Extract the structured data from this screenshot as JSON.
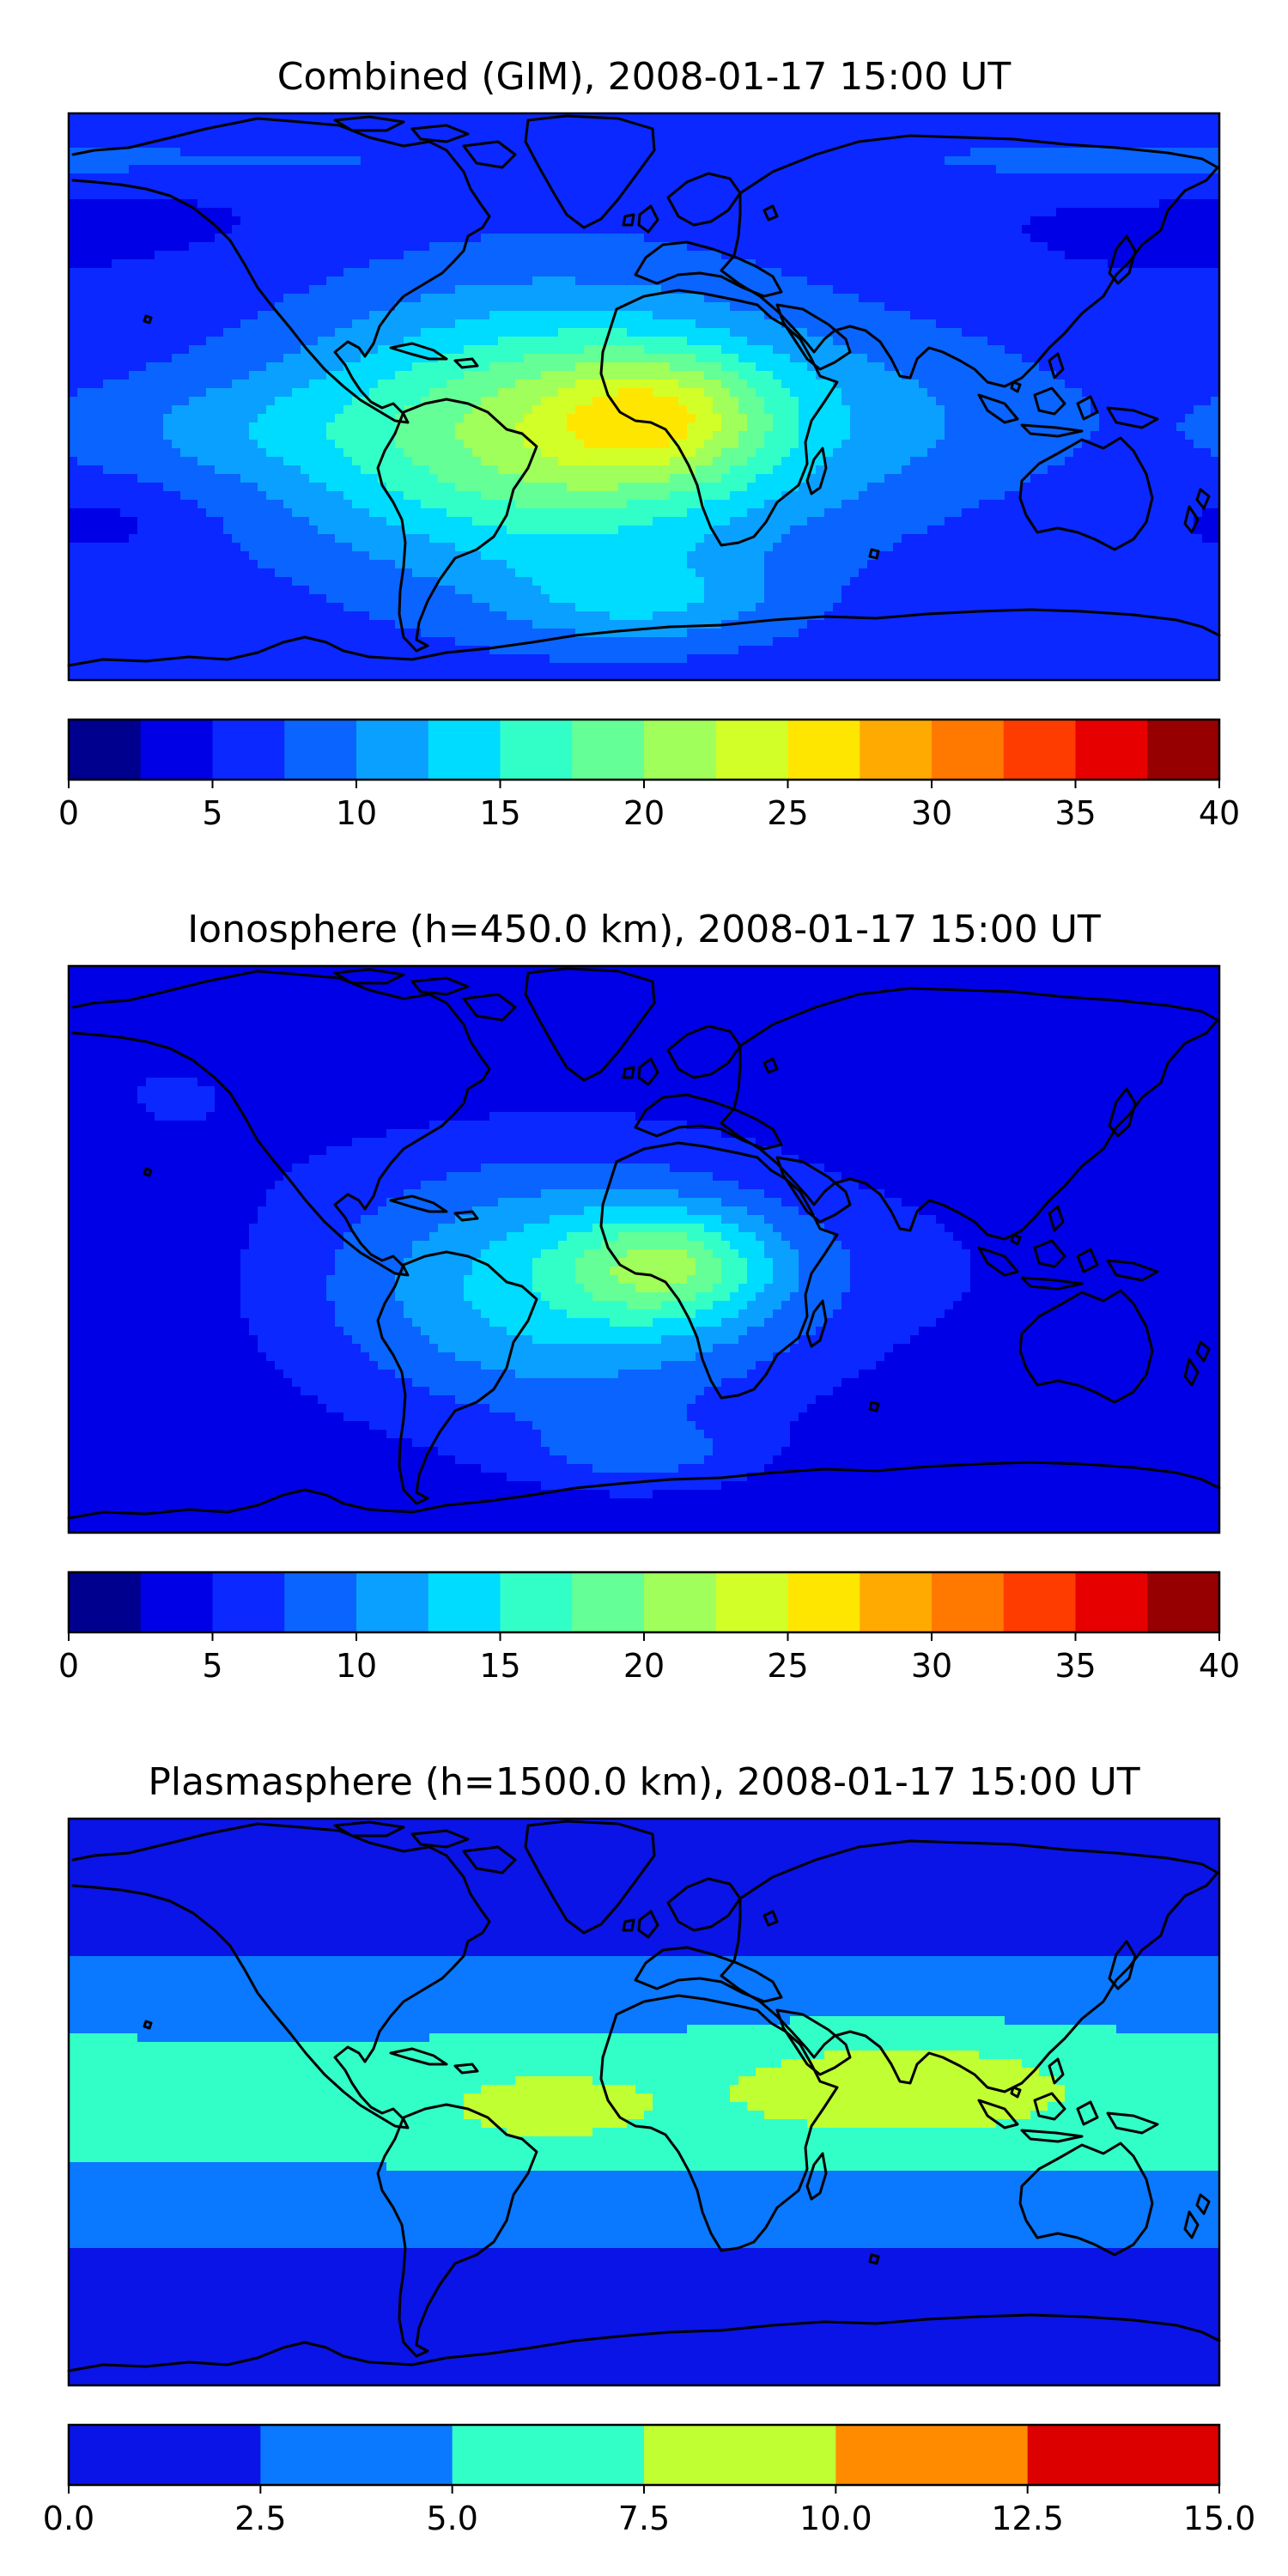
{
  "chart_data": [
    {
      "type": "heatmap",
      "title": "Combined (GIM), 2008-01-17 15:00 UT",
      "colorbar": {
        "levels": [
          0,
          2.5,
          5,
          7.5,
          10,
          12.5,
          15,
          17.5,
          20,
          22.5,
          25,
          27.5,
          30,
          32.5,
          35,
          37.5,
          40
        ],
        "tick_values": [
          0,
          5,
          10,
          15,
          20,
          25,
          30,
          35,
          40
        ],
        "tick_labels": [
          "0",
          "5",
          "10",
          "15",
          "20",
          "25",
          "30",
          "35",
          "40"
        ],
        "colors": [
          "#00008f",
          "#0000e6",
          "#0a28ff",
          "#0a64ff",
          "#0aa0ff",
          "#00dcff",
          "#32ffc8",
          "#64ff96",
          "#a0ff5a",
          "#d2ff28",
          "#ffe600",
          "#ffaa00",
          "#ff7800",
          "#ff3c00",
          "#e60000",
          "#960000"
        ]
      },
      "background_value": 6,
      "features": [
        {
          "lon": -180,
          "lat": 75,
          "sx": 80,
          "sy": 8,
          "a": 4
        },
        {
          "lon": -30,
          "lat": -12,
          "sx": 55,
          "sy": 30,
          "a": 15
        },
        {
          "lon": 5,
          "lat": -6,
          "sx": 24,
          "sy": 14,
          "a": 8
        },
        {
          "lon": 80,
          "lat": -6,
          "sx": 45,
          "sy": 20,
          "a": 3
        },
        {
          "lon": -130,
          "lat": -10,
          "sx": 40,
          "sy": 12,
          "a": 3
        },
        {
          "lon": 0,
          "lat": -65,
          "sx": 30,
          "sy": 10,
          "a": 5
        },
        {
          "lon": -140,
          "lat": 70,
          "sx": 40,
          "sy": 20,
          "a": -1.5
        },
        {
          "lon": 150,
          "lat": 65,
          "sx": 50,
          "sy": 25,
          "a": -1.5
        },
        {
          "lon": -170,
          "lat": -40,
          "sx": 20,
          "sy": 8,
          "a": -2
        }
      ]
    },
    {
      "type": "heatmap",
      "title": "Ionosphere  (h=450.0 km), 2008-01-17 15:00 UT",
      "colorbar": {
        "levels": [
          0,
          2.5,
          5,
          7.5,
          10,
          12.5,
          15,
          17.5,
          20,
          22.5,
          25,
          27.5,
          30,
          32.5,
          35,
          37.5,
          40
        ],
        "tick_values": [
          0,
          5,
          10,
          15,
          20,
          25,
          30,
          35,
          40
        ],
        "tick_labels": [
          "0",
          "5",
          "10",
          "15",
          "20",
          "25",
          "30",
          "35",
          "40"
        ],
        "colors": [
          "#00008f",
          "#0000e6",
          "#0a28ff",
          "#0a64ff",
          "#0aa0ff",
          "#00dcff",
          "#32ffc8",
          "#64ff96",
          "#a0ff5a",
          "#d2ff28",
          "#ffe600",
          "#ffaa00",
          "#ff7800",
          "#ff3c00",
          "#e60000",
          "#960000"
        ]
      },
      "background_value": 3,
      "features": [
        {
          "lon": -25,
          "lat": -12,
          "sx": 55,
          "sy": 30,
          "a": 11
        },
        {
          "lon": 8,
          "lat": -5,
          "sx": 22,
          "sy": 12,
          "a": 9
        },
        {
          "lon": -150,
          "lat": 50,
          "sx": 35,
          "sy": 20,
          "a": 2
        },
        {
          "lon": 0,
          "lat": -65,
          "sx": 25,
          "sy": 8,
          "a": 4
        },
        {
          "lon": 80,
          "lat": -5,
          "sx": 40,
          "sy": 18,
          "a": 1.5
        }
      ]
    },
    {
      "type": "heatmap",
      "title": "Plasmasphere (h=1500.0 km), 2008-01-17 15:00 UT",
      "colorbar": {
        "levels": [
          0,
          2.5,
          5,
          7.5,
          10,
          12.5,
          15
        ],
        "tick_values": [
          0,
          2.5,
          5,
          7.5,
          10,
          12.5,
          15
        ],
        "tick_labels": [
          "0.0",
          "2.5",
          "5.0",
          "7.5",
          "10.0",
          "12.5",
          "15.0"
        ],
        "colors": [
          "#0a14e6",
          "#0a78ff",
          "#32ffc8",
          "#c0ff32",
          "#ff8c00",
          "#dc0000"
        ]
      },
      "background_value": 0.5,
      "features": [
        {
          "lon": 0,
          "lat": 0,
          "sx": 1000000000.0,
          "sy": 32,
          "a": 5.5
        },
        {
          "lon": 80,
          "lat": 5,
          "sx": 40,
          "sy": 12,
          "a": 3.5
        },
        {
          "lon": -30,
          "lat": -2,
          "sx": 22,
          "sy": 8,
          "a": 3.2
        }
      ]
    }
  ]
}
